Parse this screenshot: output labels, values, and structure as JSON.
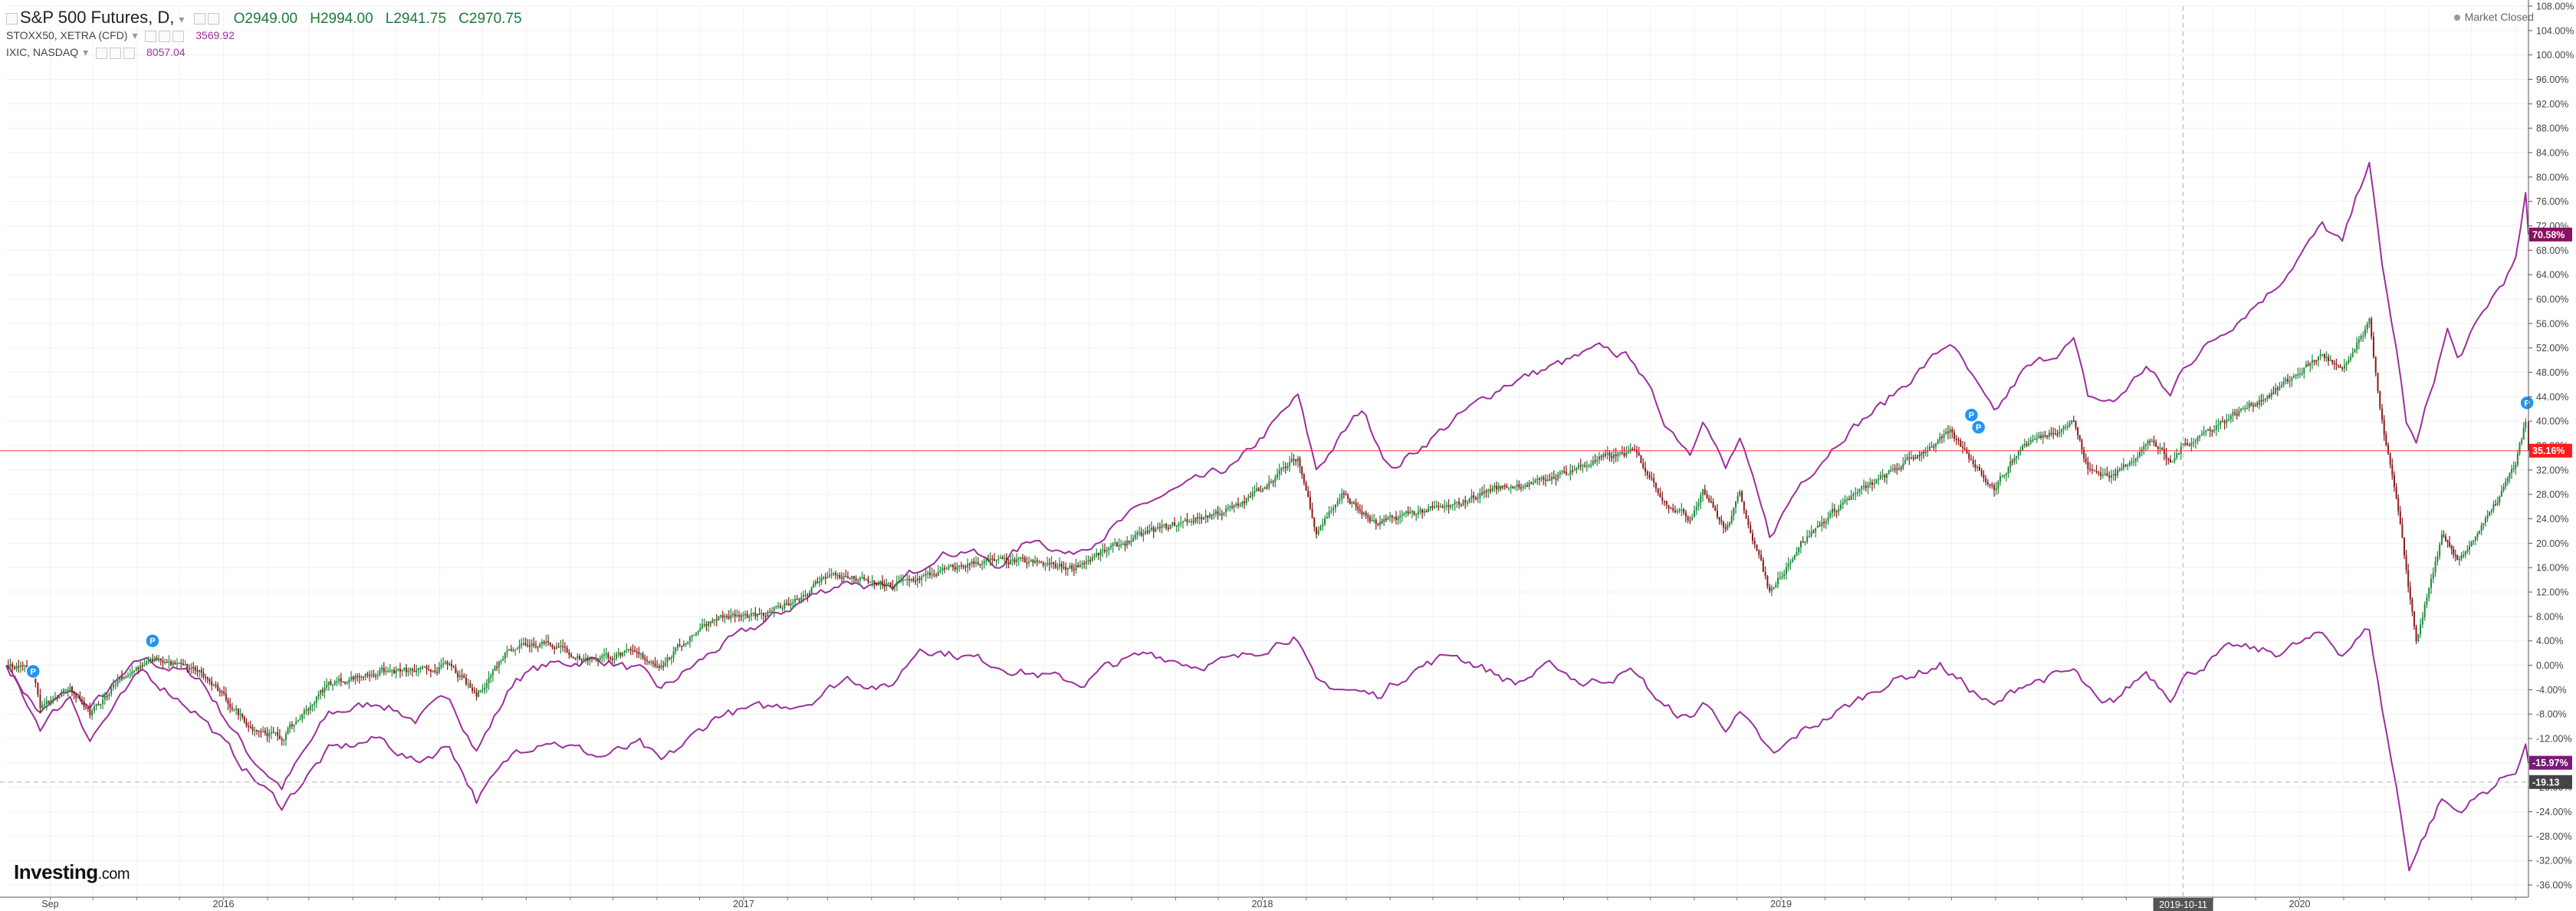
{
  "header": {
    "symbol": "S&P 500 Futures, D,",
    "open": "O2949.00",
    "high": "H2994.00",
    "low": "L2941.75",
    "close": "C2970.75",
    "series2_label": "STOXX50, XETRA (CFD)",
    "series2_value": "3569.92",
    "series3_label": "IXIC, NASDAQ",
    "series3_value": "8057.04",
    "market_status": "Market Closed"
  },
  "logo": {
    "brand": "Investing",
    "suffix": ".com"
  },
  "colors": {
    "up": "#1e8a3b",
    "down": "#8b1a1a",
    "nasdaq": "#9c2f9c",
    "stoxx": "#9c2f9c",
    "price_line": "#ff3333",
    "badge_sp": "#ff1c1c",
    "badge_nasdaq": "#8a1060",
    "badge_stoxx": "#7a1a7a",
    "badge_gray": "#444444",
    "marker": "#2196f3"
  },
  "icons": {
    "event_marker": "P"
  },
  "chart_data": {
    "type": "line",
    "title": "",
    "xlabel": "",
    "ylabel": "",
    "y_unit": "%",
    "ylim": [
      -38,
      108
    ],
    "y_ticks": [
      "108.00%",
      "104.00%",
      "100.00%",
      "96.00%",
      "92.00%",
      "88.00%",
      "84.00%",
      "80.00%",
      "76.00%",
      "72.00%",
      "68.00%",
      "64.00%",
      "60.00%",
      "56.00%",
      "52.00%",
      "48.00%",
      "44.00%",
      "40.00%",
      "36.00%",
      "32.00%",
      "28.00%",
      "24.00%",
      "20.00%",
      "16.00%",
      "12.00%",
      "8.00%",
      "4.00%",
      "0.00%",
      "-4.00%",
      "-8.00%",
      "-12.00%",
      "-16.00%",
      "-20.00%",
      "-24.00%",
      "-28.00%",
      "-32.00%",
      "-36.00%"
    ],
    "x_range": [
      "2015-08-01",
      "2020-06-10"
    ],
    "x_ticks": [
      {
        "label": "Sep",
        "date": "2015-09-01"
      },
      {
        "label": "2016",
        "date": "2016-01-01"
      },
      {
        "label": "2017",
        "date": "2017-01-01"
      },
      {
        "label": "2018",
        "date": "2018-01-01"
      },
      {
        "label": "2019",
        "date": "2019-01-01"
      },
      {
        "label": "2020",
        "date": "2020-01-01"
      }
    ],
    "crosshair": {
      "date": "2019-10-11",
      "label": "2019-10-11",
      "value": -19.13
    },
    "series": [
      {
        "name": "S&P 500 Futures",
        "style": "candlestick",
        "last": 35.16,
        "last_label": "35.16%",
        "points": [
          [
            "2015-08-01",
            0
          ],
          [
            "2015-08-20",
            -1
          ],
          [
            "2015-08-25",
            -7
          ],
          [
            "2015-09-15",
            -4
          ],
          [
            "2015-09-29",
            -8
          ],
          [
            "2015-10-20",
            -2
          ],
          [
            "2015-11-15",
            1
          ],
          [
            "2015-12-15",
            -1
          ],
          [
            "2016-01-20",
            -10
          ],
          [
            "2016-02-11",
            -12
          ],
          [
            "2016-03-15",
            -3
          ],
          [
            "2016-04-20",
            -1
          ],
          [
            "2016-05-20",
            -1
          ],
          [
            "2016-06-08",
            0
          ],
          [
            "2016-06-27",
            -5
          ],
          [
            "2016-07-20",
            3
          ],
          [
            "2016-08-15",
            4
          ],
          [
            "2016-09-09",
            1
          ],
          [
            "2016-10-15",
            2
          ],
          [
            "2016-11-04",
            0
          ],
          [
            "2016-11-30",
            6
          ],
          [
            "2016-12-13",
            8
          ],
          [
            "2017-01-15",
            8
          ],
          [
            "2017-02-15",
            12
          ],
          [
            "2017-03-01",
            15
          ],
          [
            "2017-04-13",
            13
          ],
          [
            "2017-05-15",
            15
          ],
          [
            "2017-06-15",
            17
          ],
          [
            "2017-07-15",
            17
          ],
          [
            "2017-08-20",
            16
          ],
          [
            "2017-09-15",
            19
          ],
          [
            "2017-10-15",
            22
          ],
          [
            "2017-11-15",
            24
          ],
          [
            "2017-12-15",
            26
          ],
          [
            "2018-01-26",
            34
          ],
          [
            "2018-02-08",
            22
          ],
          [
            "2018-02-26",
            28
          ],
          [
            "2018-03-22",
            23
          ],
          [
            "2018-04-15",
            25
          ],
          [
            "2018-05-15",
            26
          ],
          [
            "2018-06-12",
            29
          ],
          [
            "2018-07-15",
            30
          ],
          [
            "2018-08-29",
            34
          ],
          [
            "2018-09-20",
            35
          ],
          [
            "2018-10-11",
            27
          ],
          [
            "2018-10-29",
            24
          ],
          [
            "2018-11-07",
            29
          ],
          [
            "2018-11-23",
            22
          ],
          [
            "2018-12-03",
            28
          ],
          [
            "2018-12-24",
            12
          ],
          [
            "2019-01-15",
            20
          ],
          [
            "2019-02-15",
            27
          ],
          [
            "2019-03-15",
            31
          ],
          [
            "2019-04-30",
            38
          ],
          [
            "2019-05-31",
            29
          ],
          [
            "2019-06-20",
            36
          ],
          [
            "2019-07-26",
            40
          ],
          [
            "2019-08-05",
            32
          ],
          [
            "2019-08-23",
            31
          ],
          [
            "2019-09-19",
            37
          ],
          [
            "2019-10-02",
            33
          ],
          [
            "2019-10-11",
            36
          ],
          [
            "2019-11-15",
            41
          ],
          [
            "2019-12-15",
            45
          ],
          [
            "2020-01-17",
            51
          ],
          [
            "2020-01-31",
            48
          ],
          [
            "2020-02-19",
            56
          ],
          [
            "2020-02-28",
            40
          ],
          [
            "2020-03-09",
            27
          ],
          [
            "2020-03-23",
            4
          ],
          [
            "2020-04-10",
            21
          ],
          [
            "2020-04-21",
            17
          ],
          [
            "2020-05-15",
            25
          ],
          [
            "2020-06-01",
            33
          ],
          [
            "2020-06-08",
            40
          ],
          [
            "2020-06-10",
            35.16
          ]
        ]
      },
      {
        "name": "IXIC, NASDAQ",
        "style": "line",
        "last": 70.58,
        "last_label": "70.58%",
        "points": [
          [
            "2015-08-01",
            0
          ],
          [
            "2015-08-25",
            -8
          ],
          [
            "2015-09-15",
            -4
          ],
          [
            "2015-09-29",
            -7
          ],
          [
            "2015-11-05",
            1
          ],
          [
            "2015-12-15",
            -2
          ],
          [
            "2016-01-20",
            -15
          ],
          [
            "2016-02-11",
            -20
          ],
          [
            "2016-03-15",
            -8
          ],
          [
            "2016-04-20",
            -6
          ],
          [
            "2016-05-15",
            -9
          ],
          [
            "2016-06-08",
            -5
          ],
          [
            "2016-06-27",
            -14
          ],
          [
            "2016-07-25",
            -2
          ],
          [
            "2016-08-15",
            0
          ],
          [
            "2016-09-22",
            1
          ],
          [
            "2016-10-20",
            -1
          ],
          [
            "2016-11-04",
            -4
          ],
          [
            "2016-12-15",
            3
          ],
          [
            "2017-01-15",
            7
          ],
          [
            "2017-02-15",
            11
          ],
          [
            "2017-03-15",
            14
          ],
          [
            "2017-04-13",
            12
          ],
          [
            "2017-05-15",
            18
          ],
          [
            "2017-06-09",
            19
          ],
          [
            "2017-06-27",
            16
          ],
          [
            "2017-07-25",
            21
          ],
          [
            "2017-08-18",
            18
          ],
          [
            "2017-09-15",
            22
          ],
          [
            "2017-10-15",
            27
          ],
          [
            "2017-11-15",
            30
          ],
          [
            "2017-12-15",
            33
          ],
          [
            "2018-01-26",
            44
          ],
          [
            "2018-02-08",
            32
          ],
          [
            "2018-03-12",
            42
          ],
          [
            "2018-04-02",
            32
          ],
          [
            "2018-05-15",
            40
          ],
          [
            "2018-06-20",
            46
          ],
          [
            "2018-07-25",
            49
          ],
          [
            "2018-08-29",
            52
          ],
          [
            "2018-09-20",
            50
          ],
          [
            "2018-10-11",
            40
          ],
          [
            "2018-10-29",
            35
          ],
          [
            "2018-11-07",
            41
          ],
          [
            "2018-11-23",
            32
          ],
          [
            "2018-12-03",
            37
          ],
          [
            "2018-12-24",
            21
          ],
          [
            "2019-01-15",
            30
          ],
          [
            "2019-02-15",
            38
          ],
          [
            "2019-03-15",
            43
          ],
          [
            "2019-04-30",
            53
          ],
          [
            "2019-05-31",
            41
          ],
          [
            "2019-06-20",
            48
          ],
          [
            "2019-07-26",
            53
          ],
          [
            "2019-08-05",
            44
          ],
          [
            "2019-08-23",
            43
          ],
          [
            "2019-09-15",
            49
          ],
          [
            "2019-10-02",
            44
          ],
          [
            "2019-10-11",
            49
          ],
          [
            "2019-11-15",
            56
          ],
          [
            "2019-12-15",
            62
          ],
          [
            "2020-01-17",
            72
          ],
          [
            "2020-01-31",
            69
          ],
          [
            "2020-02-19",
            83
          ],
          [
            "2020-02-28",
            65
          ],
          [
            "2020-03-09",
            52
          ],
          [
            "2020-03-16",
            40
          ],
          [
            "2020-03-23",
            36
          ],
          [
            "2020-04-14",
            55
          ],
          [
            "2020-04-21",
            50
          ],
          [
            "2020-05-15",
            60
          ],
          [
            "2020-06-01",
            66
          ],
          [
            "2020-06-08",
            77
          ],
          [
            "2020-06-10",
            70.58
          ]
        ]
      },
      {
        "name": "STOXX50, XETRA (CFD)",
        "style": "line",
        "last": -15.97,
        "last_label": "-15.97%",
        "points": [
          [
            "2015-08-01",
            0
          ],
          [
            "2015-08-25",
            -10
          ],
          [
            "2015-09-15",
            -5
          ],
          [
            "2015-09-29",
            -12
          ],
          [
            "2015-11-05",
            -1
          ],
          [
            "2015-12-15",
            -8
          ],
          [
            "2016-01-20",
            -18
          ],
          [
            "2016-02-11",
            -23
          ],
          [
            "2016-03-15",
            -14
          ],
          [
            "2016-04-20",
            -12
          ],
          [
            "2016-05-15",
            -16
          ],
          [
            "2016-06-08",
            -13
          ],
          [
            "2016-06-27",
            -22
          ],
          [
            "2016-07-25",
            -14
          ],
          [
            "2016-08-15",
            -12
          ],
          [
            "2016-09-22",
            -15
          ],
          [
            "2016-10-20",
            -13
          ],
          [
            "2016-11-04",
            -16
          ],
          [
            "2016-12-15",
            -8
          ],
          [
            "2017-01-15",
            -7
          ],
          [
            "2017-02-15",
            -6
          ],
          [
            "2017-03-15",
            -2
          ],
          [
            "2017-04-13",
            -4
          ],
          [
            "2017-05-05",
            3
          ],
          [
            "2017-06-15",
            1
          ],
          [
            "2017-07-15",
            -1
          ],
          [
            "2017-08-29",
            -3
          ],
          [
            "2017-09-15",
            0
          ],
          [
            "2017-10-15",
            2
          ],
          [
            "2017-11-15",
            0
          ],
          [
            "2017-12-15",
            1
          ],
          [
            "2018-01-23",
            5
          ],
          [
            "2018-02-08",
            -3
          ],
          [
            "2018-03-23",
            -5
          ],
          [
            "2018-04-15",
            -1
          ],
          [
            "2018-05-15",
            2
          ],
          [
            "2018-06-28",
            -3
          ],
          [
            "2018-07-25",
            0
          ],
          [
            "2018-08-15",
            -3
          ],
          [
            "2018-09-20",
            -1
          ],
          [
            "2018-10-11",
            -7
          ],
          [
            "2018-10-29",
            -9
          ],
          [
            "2018-11-07",
            -6
          ],
          [
            "2018-11-23",
            -10
          ],
          [
            "2018-12-03",
            -8
          ],
          [
            "2018-12-27",
            -15
          ],
          [
            "2019-01-15",
            -11
          ],
          [
            "2019-02-15",
            -7
          ],
          [
            "2019-03-15",
            -3
          ],
          [
            "2019-04-23",
            0
          ],
          [
            "2019-05-31",
            -7
          ],
          [
            "2019-06-20",
            -3
          ],
          [
            "2019-07-26",
            -1
          ],
          [
            "2019-08-15",
            -7
          ],
          [
            "2019-08-23",
            -6
          ],
          [
            "2019-09-15",
            -1
          ],
          [
            "2019-10-02",
            -5
          ],
          [
            "2019-10-11",
            -2
          ],
          [
            "2019-11-15",
            3
          ],
          [
            "2019-12-15",
            2
          ],
          [
            "2020-01-17",
            5
          ],
          [
            "2020-01-31",
            2
          ],
          [
            "2020-02-19",
            6
          ],
          [
            "2020-02-28",
            -7
          ],
          [
            "2020-03-09",
            -20
          ],
          [
            "2020-03-18",
            -33
          ],
          [
            "2020-04-10",
            -22
          ],
          [
            "2020-04-21",
            -24
          ],
          [
            "2020-05-15",
            -20
          ],
          [
            "2020-06-01",
            -17
          ],
          [
            "2020-06-08",
            -13
          ],
          [
            "2020-06-10",
            -15.97
          ]
        ]
      }
    ],
    "event_markers": [
      {
        "date": "2015-08-20",
        "value": -1
      },
      {
        "date": "2015-11-12",
        "value": 4
      },
      {
        "date": "2019-05-15",
        "value": 41
      },
      {
        "date": "2019-05-20",
        "value": 39
      },
      {
        "date": "2020-06-09",
        "value": 43
      }
    ]
  }
}
